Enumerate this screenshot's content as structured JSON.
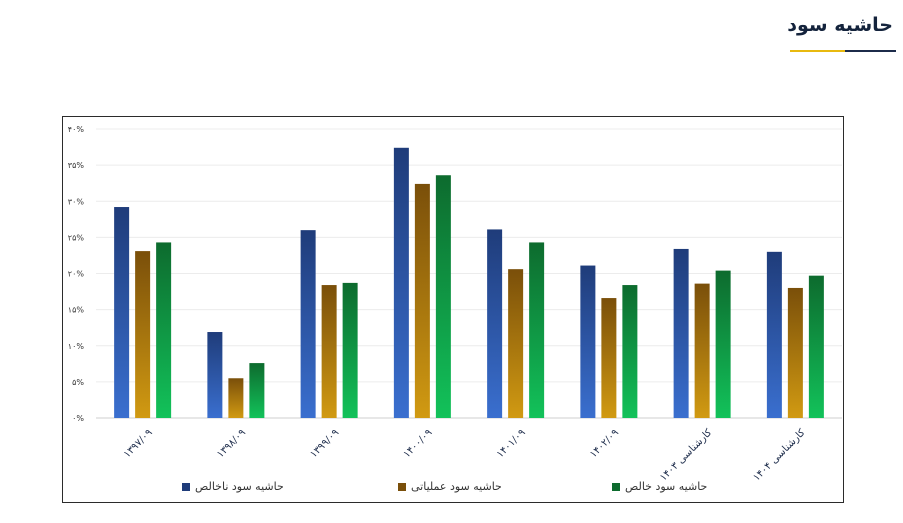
{
  "page": {
    "title": "حاشیه سود"
  },
  "colors": {
    "title_dark": "#1c2b4a",
    "title_gold": "#e8b90f"
  },
  "chart_data": {
    "type": "bar",
    "categories": [
      "۱۳۹۷/۰۹",
      "۱۳۹۸/۰۹",
      "۱۳۹۹/۰۹",
      "۱۴۰۰/۰۹",
      "۱۴۰۱/۰۹",
      "۱۴۰۲/۰۹",
      "کارشناسی ۱۴۰۳",
      "کارشناسی ۱۴۰۴"
    ],
    "series": [
      {
        "name": "حاشیه سود ناخالص",
        "color_top": "#1f3c7a",
        "color_bottom": "#3a6fcf",
        "values": [
          29.2,
          11.9,
          26.0,
          37.4,
          26.1,
          21.1,
          23.4,
          23.0
        ]
      },
      {
        "name": "حاشیه سود عملیاتی",
        "color_top": "#7a4f0a",
        "color_bottom": "#d19a12",
        "values": [
          23.1,
          5.5,
          18.4,
          32.4,
          20.6,
          16.6,
          18.6,
          18.0
        ]
      },
      {
        "name": "حاشیه سود خالص",
        "color_top": "#0d6b2e",
        "color_bottom": "#12c25a",
        "values": [
          24.3,
          7.6,
          18.7,
          33.6,
          24.3,
          18.4,
          20.4,
          19.7
        ]
      }
    ],
    "yticks": [
      "۰%",
      "۵%",
      "۱۰%",
      "۱۵%",
      "۲۰%",
      "۲۵%",
      "۳۰%",
      "۳۵%",
      "۴۰%"
    ],
    "ylim": [
      0,
      40
    ],
    "grid": true,
    "legend_position": "bottom"
  }
}
